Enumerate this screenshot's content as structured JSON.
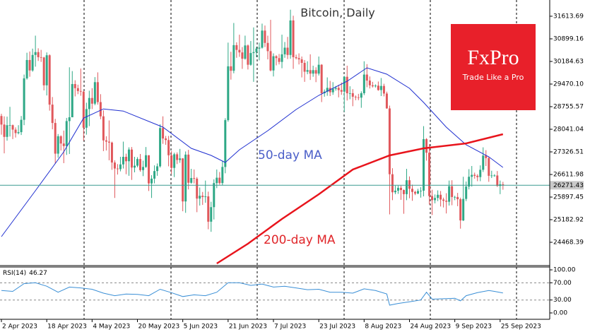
{
  "chart_data": {
    "type": "candlestick",
    "title": "Bitcoin, Daily",
    "up_color": "#2ea886",
    "down_color": "#e0575b",
    "ylim": [
      23732,
      32015
    ],
    "yticks": [
      31613.69,
      30899.16,
      30184.63,
      {
        "value": 29470.1,
        "label": "29470.10"
      },
      28755.57,
      28041.04,
      27326.51,
      26611.98,
      25897.45,
      25182.92,
      24468.39
    ],
    "xlim": [
      -0.5,
      193.5
    ],
    "xticks": [
      {
        "value": 0,
        "label": "2 Apr 2023"
      },
      {
        "value": 16,
        "label": "18 Apr 2023"
      },
      {
        "value": 32,
        "label": "4 May 2023"
      },
      {
        "value": 48,
        "label": "20 May 2023"
      },
      {
        "value": 64,
        "label": "5 Jun 2023"
      },
      {
        "value": 80,
        "label": "21 Jun 2023"
      },
      {
        "value": 96,
        "label": "7 Jul 2023"
      },
      {
        "value": 112,
        "label": "23 Jul 2023"
      },
      {
        "value": 128,
        "label": "8 Aug 2023"
      },
      {
        "value": 144,
        "label": "24 Aug 2023"
      },
      {
        "value": 160,
        "label": "9 Sep 2023"
      },
      {
        "value": 176,
        "label": "25 Sep 2023"
      }
    ],
    "ohlc": [
      [
        28460,
        28530,
        27870,
        28190
      ],
      [
        28190,
        28450,
        27280,
        27800
      ],
      [
        27800,
        28440,
        27680,
        28170
      ],
      [
        28170,
        28750,
        27810,
        28170
      ],
      [
        28170,
        28190,
        27730,
        28030
      ],
      [
        28030,
        28100,
        27780,
        27920
      ],
      [
        27920,
        28170,
        27880,
        27950
      ],
      [
        27950,
        28460,
        27860,
        28340
      ],
      [
        28340,
        29770,
        28170,
        29650
      ],
      [
        29650,
        30460,
        29610,
        30230
      ],
      [
        30230,
        30500,
        29700,
        29900
      ],
      [
        29900,
        30590,
        29860,
        30390
      ],
      [
        30390,
        31000,
        30020,
        30480
      ],
      [
        30480,
        30600,
        30200,
        30320
      ],
      [
        30320,
        30550,
        30170,
        30310
      ],
      [
        30310,
        30330,
        29270,
        29430
      ],
      [
        29430,
        30470,
        29110,
        30380
      ],
      [
        30380,
        30410,
        28630,
        28820
      ],
      [
        28820,
        29060,
        28040,
        28240
      ],
      [
        28240,
        28370,
        26960,
        27270
      ],
      [
        27270,
        27890,
        27140,
        27820
      ],
      [
        27820,
        27850,
        27370,
        27590
      ],
      [
        27590,
        28000,
        26970,
        27510
      ],
      [
        27510,
        28400,
        27230,
        28300
      ],
      [
        28300,
        30000,
        27260,
        28420
      ],
      [
        28420,
        29880,
        28420,
        29470
      ],
      [
        29470,
        29590,
        29080,
        29340
      ],
      [
        29340,
        29450,
        29150,
        29250
      ],
      [
        29250,
        29960,
        29100,
        29230
      ],
      [
        29230,
        29260,
        27680,
        28090
      ],
      [
        28090,
        28880,
        27870,
        28680
      ],
      [
        28680,
        29260,
        28140,
        29030
      ],
      [
        29030,
        29340,
        28680,
        28850
      ],
      [
        28850,
        29690,
        28800,
        29530
      ],
      [
        29530,
        29840,
        28820,
        28900
      ],
      [
        28900,
        29150,
        28360,
        28450
      ],
      [
        28450,
        28640,
        27350,
        27690
      ],
      [
        27690,
        27820,
        27370,
        27650
      ],
      [
        27650,
        28320,
        27060,
        27620
      ],
      [
        27620,
        27650,
        26760,
        26990
      ],
      [
        26990,
        27060,
        25870,
        26800
      ],
      [
        26800,
        26940,
        26610,
        26780
      ],
      [
        26780,
        27170,
        26710,
        26930
      ],
      [
        26930,
        27650,
        26800,
        27170
      ],
      [
        27170,
        27270,
        26620,
        27030
      ],
      [
        27030,
        27470,
        26570,
        27400
      ],
      [
        27400,
        27480,
        26440,
        26830
      ],
      [
        26830,
        27170,
        26680,
        26890
      ],
      [
        26890,
        27160,
        26840,
        27100
      ],
      [
        27100,
        27260,
        26700,
        26750
      ],
      [
        26750,
        27050,
        26560,
        26850
      ],
      [
        26850,
        27480,
        26820,
        27220
      ],
      [
        27220,
        27220,
        26090,
        26330
      ],
      [
        26330,
        26590,
        25870,
        26480
      ],
      [
        26480,
        26900,
        26330,
        26720
      ],
      [
        26720,
        26960,
        26570,
        26870
      ],
      [
        26870,
        28200,
        26830,
        28080
      ],
      [
        28080,
        28450,
        27580,
        27750
      ],
      [
        27750,
        27830,
        27550,
        27700
      ],
      [
        27700,
        27830,
        26870,
        27220
      ],
      [
        27220,
        27350,
        26630,
        26820
      ],
      [
        26820,
        27300,
        26530,
        27250
      ],
      [
        27250,
        27310,
        26940,
        27070
      ],
      [
        27070,
        27420,
        26980,
        27120
      ],
      [
        27120,
        27130,
        25450,
        25760
      ],
      [
        25760,
        27340,
        25400,
        27240
      ],
      [
        27240,
        27390,
        26140,
        26350
      ],
      [
        26350,
        26790,
        26320,
        26500
      ],
      [
        26500,
        26770,
        26330,
        26480
      ],
      [
        26480,
        26530,
        25420,
        25850
      ],
      [
        25850,
        26200,
        25630,
        25940
      ],
      [
        25940,
        26060,
        25650,
        25900
      ],
      [
        25900,
        26420,
        25720,
        25920
      ],
      [
        25920,
        26070,
        24880,
        25120
      ],
      [
        25120,
        25750,
        24800,
        25580
      ],
      [
        25580,
        26460,
        25190,
        26340
      ],
      [
        26340,
        26770,
        26180,
        26510
      ],
      [
        26510,
        26690,
        26290,
        26340
      ],
      [
        26340,
        27030,
        26270,
        26850
      ],
      [
        26850,
        28390,
        26650,
        28330
      ],
      [
        28330,
        30780,
        28280,
        30030
      ],
      [
        30030,
        30490,
        29610,
        29890
      ],
      [
        29890,
        31400,
        29810,
        30700
      ],
      [
        30700,
        30790,
        30300,
        30550
      ],
      [
        30550,
        31030,
        30330,
        30470
      ],
      [
        30470,
        30640,
        29950,
        30270
      ],
      [
        30270,
        31000,
        30240,
        30690
      ],
      [
        30690,
        30720,
        29930,
        30080
      ],
      [
        30080,
        30830,
        30050,
        30450
      ],
      [
        30450,
        31260,
        29540,
        30480
      ],
      [
        30480,
        30650,
        30320,
        30590
      ],
      [
        30590,
        30780,
        30220,
        30620
      ],
      [
        30620,
        31380,
        30590,
        31160
      ],
      [
        31160,
        31320,
        30640,
        30770
      ],
      [
        30770,
        31000,
        30250,
        30510
      ],
      [
        30510,
        31500,
        29870,
        29900
      ],
      [
        29900,
        30440,
        29710,
        30350
      ],
      [
        30350,
        30380,
        30060,
        30290
      ],
      [
        30290,
        30420,
        30090,
        30170
      ],
      [
        30170,
        31030,
        29970,
        30410
      ],
      [
        30410,
        30800,
        30300,
        30620
      ],
      [
        30620,
        30960,
        30260,
        30390
      ],
      [
        30390,
        31820,
        30270,
        31480
      ],
      [
        31480,
        31630,
        29950,
        30320
      ],
      [
        30320,
        30400,
        30250,
        30290
      ],
      [
        30290,
        30440,
        30090,
        30250
      ],
      [
        30250,
        30340,
        29680,
        30140
      ],
      [
        30140,
        30230,
        29540,
        29860
      ],
      [
        29860,
        30190,
        29780,
        29910
      ],
      [
        29910,
        30410,
        29600,
        29800
      ],
      [
        29800,
        30050,
        29700,
        29910
      ],
      [
        29910,
        30000,
        29530,
        29800
      ],
      [
        29800,
        30340,
        29740,
        30080
      ],
      [
        30080,
        30100,
        28900,
        29180
      ],
      [
        29180,
        29300,
        29070,
        29230
      ],
      [
        29230,
        29680,
        29100,
        29350
      ],
      [
        29350,
        29570,
        29090,
        29210
      ],
      [
        29210,
        29530,
        29130,
        29320
      ],
      [
        29320,
        29410,
        29260,
        29350
      ],
      [
        29350,
        29450,
        29050,
        29280
      ],
      [
        29280,
        29520,
        29130,
        29230
      ],
      [
        29230,
        29730,
        28590,
        29700
      ],
      [
        29700,
        30050,
        28950,
        29180
      ],
      [
        29180,
        29400,
        28990,
        29180
      ],
      [
        29180,
        29310,
        28770,
        29070
      ],
      [
        29070,
        29110,
        28960,
        29050
      ],
      [
        29050,
        29160,
        28960,
        29040
      ],
      [
        29040,
        29240,
        28720,
        29180
      ],
      [
        29180,
        30190,
        29120,
        29770
      ],
      [
        29770,
        30100,
        29370,
        29580
      ],
      [
        29580,
        29710,
        29330,
        29430
      ],
      [
        29430,
        29540,
        29360,
        29400
      ],
      [
        29400,
        29460,
        29360,
        29420
      ],
      [
        29420,
        29550,
        29260,
        29280
      ],
      [
        29280,
        29660,
        29090,
        29410
      ],
      [
        29410,
        29480,
        29080,
        29170
      ],
      [
        29170,
        29230,
        28690,
        28700
      ],
      [
        28700,
        28790,
        25350,
        26620
      ],
      [
        26620,
        26810,
        25800,
        26050
      ],
      [
        26050,
        26260,
        25990,
        26100
      ],
      [
        26100,
        26260,
        26000,
        26190
      ],
      [
        26190,
        26260,
        25810,
        26120
      ],
      [
        26120,
        26140,
        25370,
        25990
      ],
      [
        25990,
        26790,
        25800,
        26430
      ],
      [
        26430,
        26550,
        25860,
        26160
      ],
      [
        26160,
        26290,
        25780,
        26060
      ],
      [
        26060,
        26100,
        25960,
        26010
      ],
      [
        26010,
        26160,
        25990,
        26090
      ],
      [
        26090,
        26210,
        25880,
        26100
      ],
      [
        26100,
        28140,
        25920,
        27730
      ],
      [
        27730,
        27760,
        27050,
        27300
      ],
      [
        27300,
        27570,
        25660,
        25930
      ],
      [
        25930,
        26130,
        25330,
        25800
      ],
      [
        25800,
        25980,
        25700,
        25870
      ],
      [
        25870,
        26110,
        25770,
        25970
      ],
      [
        25970,
        26090,
        25600,
        25820
      ],
      [
        25820,
        25880,
        25570,
        25780
      ],
      [
        25780,
        26020,
        25380,
        25750
      ],
      [
        25750,
        26420,
        25630,
        26240
      ],
      [
        26240,
        26430,
        25640,
        25900
      ],
      [
        25900,
        25940,
        25800,
        25900
      ],
      [
        25900,
        26030,
        25610,
        25830
      ],
      [
        25830,
        25880,
        24900,
        25160
      ],
      [
        25160,
        26540,
        25140,
        25840
      ],
      [
        25840,
        26390,
        25770,
        26230
      ],
      [
        26230,
        26780,
        26140,
        26540
      ],
      [
        26540,
        26880,
        26230,
        26600
      ],
      [
        26600,
        26670,
        26480,
        26570
      ],
      [
        26570,
        26620,
        26400,
        26530
      ],
      [
        26530,
        26900,
        26400,
        26760
      ],
      [
        26760,
        27470,
        26690,
        27210
      ],
      [
        27210,
        27380,
        26880,
        27130
      ],
      [
        27130,
        27170,
        26380,
        26570
      ],
      [
        26570,
        26730,
        26500,
        26580
      ],
      [
        26580,
        26620,
        26540,
        26580
      ],
      [
        26580,
        26720,
        26220,
        26250
      ],
      [
        26250,
        26420,
        25990,
        26300
      ],
      [
        26300,
        26380,
        26130,
        26271.43
      ]
    ],
    "series": [
      {
        "name": "50-day MA",
        "color": "#1f2fd0",
        "label_color": "#4a5ec8",
        "x": [
          0,
          12,
          22,
          29,
          36,
          43,
          57,
          67,
          74,
          79,
          84,
          94,
          104,
          112,
          122,
          129,
          136,
          144,
          149,
          157,
          164,
          172,
          177
        ],
        "values": [
          24647,
          26098,
          27327,
          28393,
          28683,
          28616,
          28108,
          27438,
          27215,
          26992,
          27394,
          27997,
          28666,
          29113,
          29560,
          29984,
          29783,
          29336,
          28890,
          28108,
          27550,
          27170,
          26835
        ]
      },
      {
        "name": "200-day MA",
        "color": "#e8141c",
        "label_color": "#e0262a",
        "x": [
          76,
          87,
          99,
          112,
          124,
          137,
          149,
          164,
          177
        ],
        "values": [
          23798,
          24424,
          25205,
          25987,
          26768,
          27215,
          27438,
          27595,
          27885
        ]
      }
    ],
    "rsi": {
      "title": "RSI(14)",
      "color": "#3a8fd6",
      "ylim": [
        -14.75,
        106.6
      ],
      "yticks": [
        {
          "value": 100,
          "label": "100.00"
        },
        {
          "value": 70,
          "label": "70.00"
        },
        {
          "value": 30,
          "label": "30.00"
        },
        {
          "value": 0,
          "label": "0.00"
        }
      ],
      "x": [
        0,
        4,
        8,
        12,
        16,
        20,
        24,
        28,
        32,
        36,
        40,
        44,
        48,
        52,
        56,
        60,
        64,
        68,
        72,
        76,
        80,
        84,
        88,
        92,
        96,
        100,
        104,
        108,
        112,
        116,
        120,
        124,
        128,
        132,
        136,
        137,
        140,
        144,
        148,
        150,
        152,
        156,
        160,
        162,
        164,
        168,
        172,
        174,
        177
      ],
      "values": [
        52,
        50,
        68,
        70,
        62,
        48,
        60,
        58,
        55,
        46,
        40,
        44,
        43,
        40,
        55,
        47,
        38,
        42,
        40,
        48,
        70,
        70,
        64,
        67,
        60,
        62,
        58,
        54,
        55,
        48,
        48,
        46,
        56,
        52,
        44,
        18,
        22,
        26,
        30,
        48,
        32,
        33,
        34,
        28,
        40,
        47,
        52,
        50,
        46.27
      ]
    },
    "logo_name": "FxPro",
    "logo_slogan": "Trade Like a Pro"
  }
}
